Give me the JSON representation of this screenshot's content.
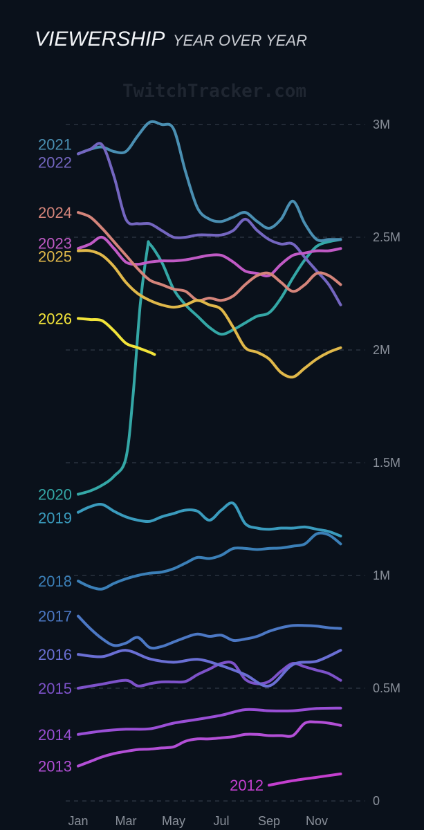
{
  "title": {
    "main": "VIEWERSHIP",
    "sub": "YEAR OVER YEAR"
  },
  "watermark": "TwitchTracker.com",
  "chart_data": {
    "type": "line",
    "ylim": [
      0,
      3000000
    ],
    "y_ticks": [
      {
        "value": 0,
        "label": "0"
      },
      {
        "value": 500000,
        "label": "0.5M"
      },
      {
        "value": 1000000,
        "label": "1M"
      },
      {
        "value": 1500000,
        "label": "1.5M"
      },
      {
        "value": 2000000,
        "label": "2M"
      },
      {
        "value": 2500000,
        "label": "2.5M"
      },
      {
        "value": 3000000,
        "label": "3M"
      }
    ],
    "x_ticks": [
      {
        "month": 1,
        "label": "Jan"
      },
      {
        "month": 3,
        "label": "Mar"
      },
      {
        "month": 5,
        "label": "May"
      },
      {
        "month": 7,
        "label": "Jul"
      },
      {
        "month": 9,
        "label": "Sep"
      },
      {
        "month": 11,
        "label": "Nov"
      }
    ],
    "grid": true,
    "series": [
      {
        "name": "2012",
        "color": "#c43fcf",
        "x": [
          9,
          10,
          11,
          12
        ],
        "y": [
          70000,
          90000,
          105000,
          120000
        ]
      },
      {
        "name": "2013",
        "color": "#b34fd6",
        "x": [
          1,
          1.5,
          2,
          2.5,
          3,
          3.5,
          4,
          4.5,
          5,
          5.5,
          6,
          6.5,
          7,
          7.5,
          8,
          8.5,
          9,
          9.5,
          10,
          10.5,
          11,
          11.5,
          12
        ],
        "y": [
          155000,
          175000,
          195000,
          210000,
          220000,
          228000,
          230000,
          235000,
          240000,
          265000,
          275000,
          275000,
          280000,
          285000,
          295000,
          295000,
          290000,
          290000,
          290000,
          345000,
          350000,
          345000,
          335000
        ]
      },
      {
        "name": "2014",
        "color": "#9a4fd6",
        "x": [
          1,
          2,
          3,
          4,
          5,
          6,
          7,
          8,
          9,
          10,
          11,
          12
        ],
        "y": [
          295000,
          310000,
          318000,
          320000,
          345000,
          362000,
          380000,
          405000,
          400000,
          400000,
          410000,
          412000
        ]
      },
      {
        "name": "2015",
        "color": "#7d52c9",
        "x": [
          1,
          2,
          3,
          3.5,
          4,
          4.5,
          5,
          5.5,
          6,
          6.5,
          7,
          7.5,
          8,
          8.5,
          9,
          9.5,
          10,
          10.5,
          11,
          11.5,
          12
        ],
        "y": [
          500000,
          518000,
          535000,
          510000,
          520000,
          528000,
          528000,
          530000,
          560000,
          585000,
          610000,
          610000,
          540000,
          520000,
          530000,
          575000,
          610000,
          595000,
          580000,
          565000,
          535000
        ]
      },
      {
        "name": "2016",
        "color": "#6a6fd4",
        "x": [
          1,
          2,
          3,
          4,
          5,
          6,
          7,
          8,
          9,
          10,
          11,
          12
        ],
        "y": [
          650000,
          640000,
          668000,
          630000,
          615000,
          628000,
          600000,
          560000,
          510000,
          605000,
          620000,
          668000
        ]
      },
      {
        "name": "2017",
        "color": "#4c78c4",
        "x": [
          1,
          1.5,
          2,
          2.5,
          3,
          3.5,
          4,
          4.5,
          5,
          5.5,
          6,
          6.5,
          7,
          7.5,
          8,
          8.5,
          9,
          9.5,
          10,
          10.5,
          11,
          11.5,
          12
        ],
        "y": [
          820000,
          765000,
          720000,
          690000,
          700000,
          725000,
          680000,
          685000,
          705000,
          725000,
          740000,
          730000,
          735000,
          712000,
          718000,
          730000,
          752000,
          768000,
          778000,
          778000,
          775000,
          768000,
          765000
        ]
      },
      {
        "name": "2018",
        "color": "#3b7fb7",
        "x": [
          1,
          1.5,
          2,
          2.5,
          3,
          3.5,
          4,
          4.5,
          5,
          5.5,
          6,
          6.5,
          7,
          7.5,
          8,
          8.5,
          9,
          9.5,
          10,
          10.5,
          11,
          11.5,
          12
        ],
        "y": [
          975000,
          950000,
          940000,
          965000,
          985000,
          1000000,
          1010000,
          1015000,
          1030000,
          1055000,
          1080000,
          1075000,
          1090000,
          1120000,
          1120000,
          1115000,
          1120000,
          1122000,
          1130000,
          1140000,
          1185000,
          1180000,
          1140000
        ]
      },
      {
        "name": "2019",
        "color": "#3a9bbd",
        "x": [
          1,
          1.5,
          2,
          2.5,
          3,
          3.5,
          4,
          4.5,
          5,
          5.5,
          6,
          6.5,
          7,
          7.5,
          8,
          8.5,
          9,
          9.5,
          10,
          10.5,
          11,
          11.5,
          12
        ],
        "y": [
          1280000,
          1305000,
          1315000,
          1285000,
          1260000,
          1245000,
          1240000,
          1260000,
          1275000,
          1290000,
          1285000,
          1245000,
          1290000,
          1320000,
          1230000,
          1210000,
          1205000,
          1210000,
          1210000,
          1215000,
          1205000,
          1195000,
          1175000
        ]
      },
      {
        "name": "2020",
        "color": "#34a7a6",
        "x": [
          1,
          1.5,
          2,
          2.5,
          3,
          3.3,
          3.6,
          3.9,
          4,
          4.5,
          5,
          5.5,
          6,
          6.5,
          7,
          7.5,
          8,
          8.5,
          9,
          9.5,
          10,
          10.5,
          11,
          11.5,
          12
        ],
        "y": [
          1360000,
          1375000,
          1400000,
          1440000,
          1520000,
          1800000,
          2200000,
          2450000,
          2470000,
          2390000,
          2270000,
          2200000,
          2150000,
          2100000,
          2070000,
          2090000,
          2120000,
          2150000,
          2165000,
          2230000,
          2320000,
          2400000,
          2460000,
          2480000,
          2490000
        ]
      },
      {
        "name": "2021",
        "color": "#4a8fb2",
        "x": [
          1,
          1.5,
          2,
          2.5,
          3,
          3.5,
          4,
          4.5,
          5,
          5.5,
          6,
          6.5,
          7,
          7.5,
          8,
          8.5,
          9,
          9.5,
          10,
          10.5,
          11,
          11.5,
          12
        ],
        "y": [
          2870000,
          2890000,
          2900000,
          2880000,
          2880000,
          2950000,
          3010000,
          3000000,
          2980000,
          2790000,
          2630000,
          2580000,
          2570000,
          2590000,
          2610000,
          2570000,
          2540000,
          2580000,
          2660000,
          2560000,
          2490000,
          2490000,
          2490000
        ]
      },
      {
        "name": "2022",
        "color": "#7466c0",
        "x": [
          1,
          1.5,
          2,
          2.5,
          3,
          3.5,
          4,
          4.5,
          5,
          5.5,
          6,
          6.5,
          7,
          7.5,
          8,
          8.5,
          9,
          9.5,
          10,
          10.5,
          11,
          11.5,
          12
        ],
        "y": [
          2870000,
          2890000,
          2910000,
          2770000,
          2580000,
          2560000,
          2560000,
          2530000,
          2500000,
          2500000,
          2510000,
          2510000,
          2510000,
          2530000,
          2580000,
          2530000,
          2490000,
          2470000,
          2470000,
          2410000,
          2350000,
          2290000,
          2200000
        ]
      },
      {
        "name": "2023",
        "color": "#c05ac5",
        "x": [
          1,
          1.5,
          2,
          2.5,
          3,
          3.5,
          4,
          4.5,
          5,
          5.5,
          6,
          6.5,
          7,
          7.5,
          8,
          8.5,
          9,
          9.5,
          10,
          10.5,
          11,
          11.5,
          12
        ],
        "y": [
          2450000,
          2470000,
          2500000,
          2450000,
          2390000,
          2380000,
          2390000,
          2395000,
          2395000,
          2400000,
          2410000,
          2420000,
          2420000,
          2390000,
          2350000,
          2340000,
          2330000,
          2380000,
          2420000,
          2430000,
          2440000,
          2440000,
          2450000
        ]
      },
      {
        "name": "2024",
        "color": "#d4847a",
        "x": [
          1,
          1.5,
          2,
          2.5,
          3,
          3.5,
          4,
          4.5,
          5,
          5.5,
          6,
          6.5,
          7,
          7.5,
          8,
          8.5,
          9,
          9.5,
          10,
          10.5,
          11,
          11.5,
          12
        ],
        "y": [
          2610000,
          2590000,
          2540000,
          2480000,
          2420000,
          2360000,
          2310000,
          2290000,
          2270000,
          2260000,
          2220000,
          2230000,
          2220000,
          2240000,
          2290000,
          2330000,
          2340000,
          2300000,
          2260000,
          2290000,
          2340000,
          2330000,
          2290000
        ]
      },
      {
        "name": "2025",
        "color": "#e0b84a",
        "x": [
          1,
          1.5,
          2,
          2.5,
          3,
          3.5,
          4,
          4.5,
          5,
          5.5,
          6,
          6.5,
          7,
          7.5,
          8,
          8.5,
          9,
          9.5,
          10,
          10.5,
          11,
          11.5,
          12
        ],
        "y": [
          2440000,
          2440000,
          2420000,
          2370000,
          2300000,
          2250000,
          2220000,
          2200000,
          2190000,
          2200000,
          2220000,
          2200000,
          2180000,
          2100000,
          2010000,
          1990000,
          1960000,
          1900000,
          1880000,
          1920000,
          1960000,
          1990000,
          2010000
        ]
      },
      {
        "name": "2026",
        "color": "#f2e43a",
        "x": [
          1,
          1.5,
          2,
          2.5,
          3,
          3.5,
          4,
          4.2
        ],
        "y": [
          2140000,
          2135000,
          2130000,
          2085000,
          2030000,
          2010000,
          1990000,
          1980000
        ]
      }
    ]
  }
}
